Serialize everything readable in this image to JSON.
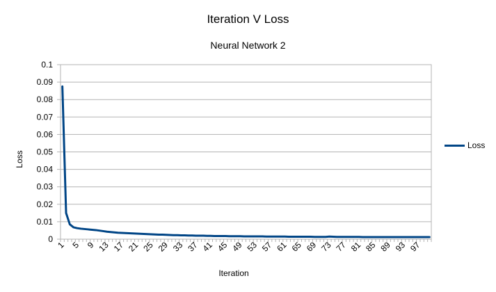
{
  "chart_data": {
    "type": "line",
    "title": "Iteration V Loss",
    "subtitle": "Neural Network 2",
    "xlabel": "Iteration",
    "ylabel": "Loss",
    "ylim": [
      0,
      0.1
    ],
    "ytick_step": 0.01,
    "yticks": [
      "0",
      "0.01",
      "0.02",
      "0.03",
      "0.04",
      "0.05",
      "0.06",
      "0.07",
      "0.08",
      "0.09",
      "0.1"
    ],
    "x": [
      1,
      2,
      3,
      4,
      5,
      6,
      7,
      8,
      9,
      10,
      11,
      12,
      13,
      14,
      15,
      16,
      17,
      18,
      19,
      20,
      21,
      22,
      23,
      24,
      25,
      26,
      27,
      28,
      29,
      30,
      31,
      32,
      33,
      34,
      35,
      36,
      37,
      38,
      39,
      40,
      41,
      42,
      43,
      44,
      45,
      46,
      47,
      48,
      49,
      50,
      51,
      52,
      53,
      54,
      55,
      56,
      57,
      58,
      59,
      60,
      61,
      62,
      63,
      64,
      65,
      66,
      67,
      68,
      69,
      70,
      71,
      72,
      73,
      74,
      75,
      76,
      77,
      78,
      79,
      80,
      81,
      82,
      83,
      84,
      85,
      86,
      87,
      88,
      89,
      90,
      91,
      92,
      93,
      94,
      95,
      96,
      97,
      98,
      99,
      100
    ],
    "xtick_labels": [
      "1",
      "5",
      "9",
      "13",
      "17",
      "21",
      "25",
      "29",
      "33",
      "37",
      "41",
      "45",
      "49",
      "53",
      "57",
      "61",
      "65",
      "69",
      "73",
      "77",
      "81",
      "85",
      "89",
      "93",
      "97"
    ],
    "grid": true,
    "legend_position": "right",
    "series": [
      {
        "name": "Loss",
        "color": "#004586",
        "values": [
          0.0875,
          0.015,
          0.0085,
          0.0068,
          0.0063,
          0.006,
          0.0058,
          0.0056,
          0.0054,
          0.0052,
          0.0049,
          0.0046,
          0.0043,
          0.0041,
          0.0039,
          0.0037,
          0.0036,
          0.0035,
          0.0034,
          0.0033,
          0.0032,
          0.0031,
          0.003,
          0.0029,
          0.0028,
          0.0027,
          0.0026,
          0.0026,
          0.0025,
          0.0024,
          0.0023,
          0.0023,
          0.0022,
          0.0022,
          0.0021,
          0.0021,
          0.002,
          0.002,
          0.002,
          0.0019,
          0.0019,
          0.0018,
          0.0018,
          0.0018,
          0.0018,
          0.0017,
          0.0017,
          0.0017,
          0.0017,
          0.0016,
          0.0016,
          0.0016,
          0.0016,
          0.0016,
          0.0016,
          0.0015,
          0.0015,
          0.0015,
          0.0015,
          0.0015,
          0.0015,
          0.0014,
          0.0014,
          0.0014,
          0.0014,
          0.0014,
          0.0014,
          0.0014,
          0.0013,
          0.0013,
          0.0013,
          0.0013,
          0.0015,
          0.0014,
          0.0013,
          0.0013,
          0.0013,
          0.0013,
          0.0013,
          0.0013,
          0.0013,
          0.0012,
          0.0012,
          0.0012,
          0.0012,
          0.0012,
          0.0012,
          0.0012,
          0.0012,
          0.0012,
          0.0012,
          0.0012,
          0.0012,
          0.0012,
          0.0012,
          0.0012,
          0.0012,
          0.0012,
          0.0012,
          0.0012
        ]
      }
    ]
  }
}
